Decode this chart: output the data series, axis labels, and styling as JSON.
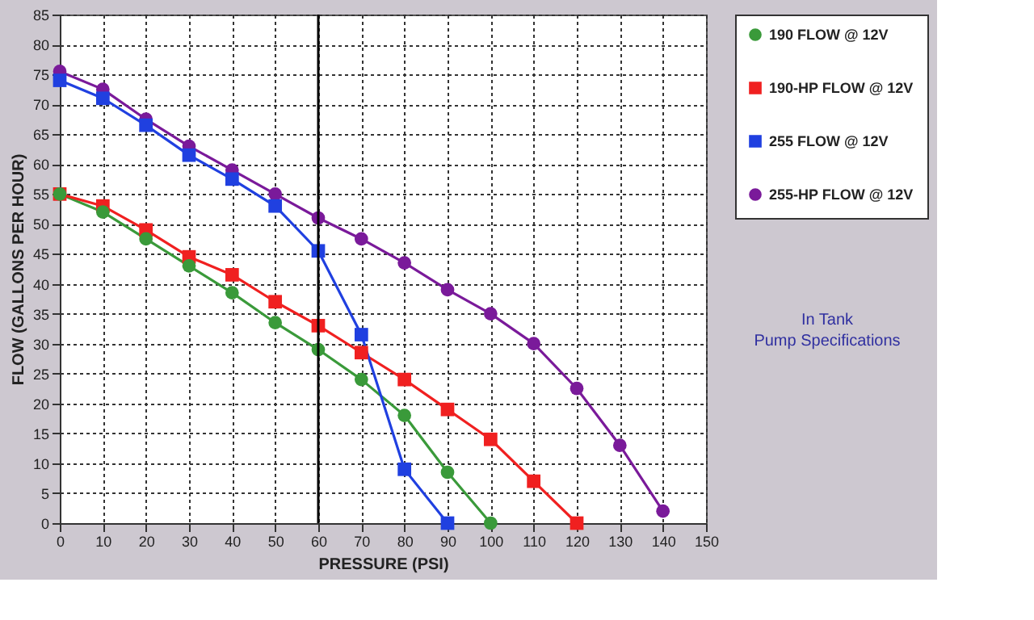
{
  "chart_data": {
    "type": "line",
    "xlabel": "PRESSURE (PSI)",
    "ylabel": "FLOW (GALLONS PER HOUR)",
    "xlim": [
      0,
      150
    ],
    "xticks": [
      0,
      10,
      20,
      30,
      40,
      50,
      60,
      70,
      80,
      90,
      100,
      110,
      120,
      130,
      140,
      150
    ],
    "ylim": [
      0,
      85
    ],
    "yticks": [
      0,
      5,
      10,
      15,
      20,
      25,
      30,
      35,
      40,
      45,
      50,
      55,
      60,
      65,
      70,
      75,
      80,
      85
    ],
    "grid": true,
    "legend": "right",
    "line_style": "solid",
    "series": [
      {
        "name": "190 FLOW @ 12V",
        "color": "#3a9a3a",
        "marker": "circle",
        "x": [
          0,
          10,
          20,
          30,
          40,
          50,
          60,
          70,
          80,
          90,
          100
        ],
        "values": [
          55,
          52,
          47.5,
          43,
          38.5,
          33.5,
          29,
          24,
          18,
          8.5,
          0
        ]
      },
      {
        "name": "190-HP FLOW @ 12V",
        "color": "#f02020",
        "marker": "square",
        "x": [
          0,
          10,
          20,
          30,
          40,
          50,
          60,
          70,
          80,
          90,
          100,
          110,
          120
        ],
        "values": [
          55,
          53,
          49,
          44.5,
          41.5,
          37,
          33,
          28.5,
          24,
          19,
          14,
          7,
          0
        ]
      },
      {
        "name": "255 FLOW @ 12V",
        "color": "#2040e0",
        "marker": "square",
        "x": [
          0,
          10,
          20,
          30,
          40,
          50,
          60,
          70,
          80,
          90
        ],
        "values": [
          74,
          71,
          66.5,
          61.5,
          57.5,
          53,
          45.5,
          31.5,
          9,
          0
        ]
      },
      {
        "name": "255-HP FLOW @ 12V",
        "color": "#7a1a9a",
        "marker": "circle",
        "x": [
          0,
          10,
          20,
          30,
          40,
          50,
          60,
          70,
          80,
          90,
          100,
          110,
          120,
          130,
          140
        ],
        "values": [
          75.5,
          72.5,
          67.5,
          63,
          59,
          55,
          51,
          47.5,
          43.5,
          39,
          35,
          30,
          22.5,
          13,
          2
        ]
      }
    ],
    "ref_lines": [
      {
        "axis": "x",
        "value": 60,
        "color": "#000000",
        "line_style": "solid"
      }
    ],
    "annotations": [
      "In Tank Pump Specifications"
    ]
  }
}
